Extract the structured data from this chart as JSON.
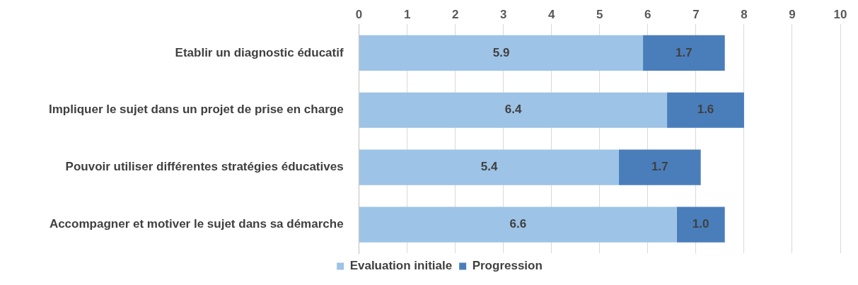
{
  "chart_data": {
    "type": "bar",
    "orientation": "horizontal",
    "stacked": true,
    "categories": [
      "Etablir un diagnostic éducatif",
      "Impliquer le sujet dans un projet de prise en charge",
      "Pouvoir utiliser différentes stratégies éducatives",
      "Accompagner et motiver le sujet dans sa démarche"
    ],
    "series": [
      {
        "name": "Evaluation initiale",
        "color": "#9dc3e6",
        "values": [
          5.9,
          6.4,
          5.4,
          6.6
        ],
        "value_labels": [
          "5.9",
          "6.4",
          "5.4",
          "6.6"
        ]
      },
      {
        "name": "Progression",
        "color": "#4a7ebb",
        "values": [
          1.7,
          1.6,
          1.7,
          1.0
        ],
        "value_labels": [
          "1.7",
          "1.6",
          "1.7",
          "1.0"
        ]
      }
    ],
    "xlim": [
      0,
      10
    ],
    "xticks": [
      0,
      1,
      2,
      3,
      4,
      5,
      6,
      7,
      8,
      9,
      10
    ],
    "grid": "x",
    "legend": "bottom"
  }
}
